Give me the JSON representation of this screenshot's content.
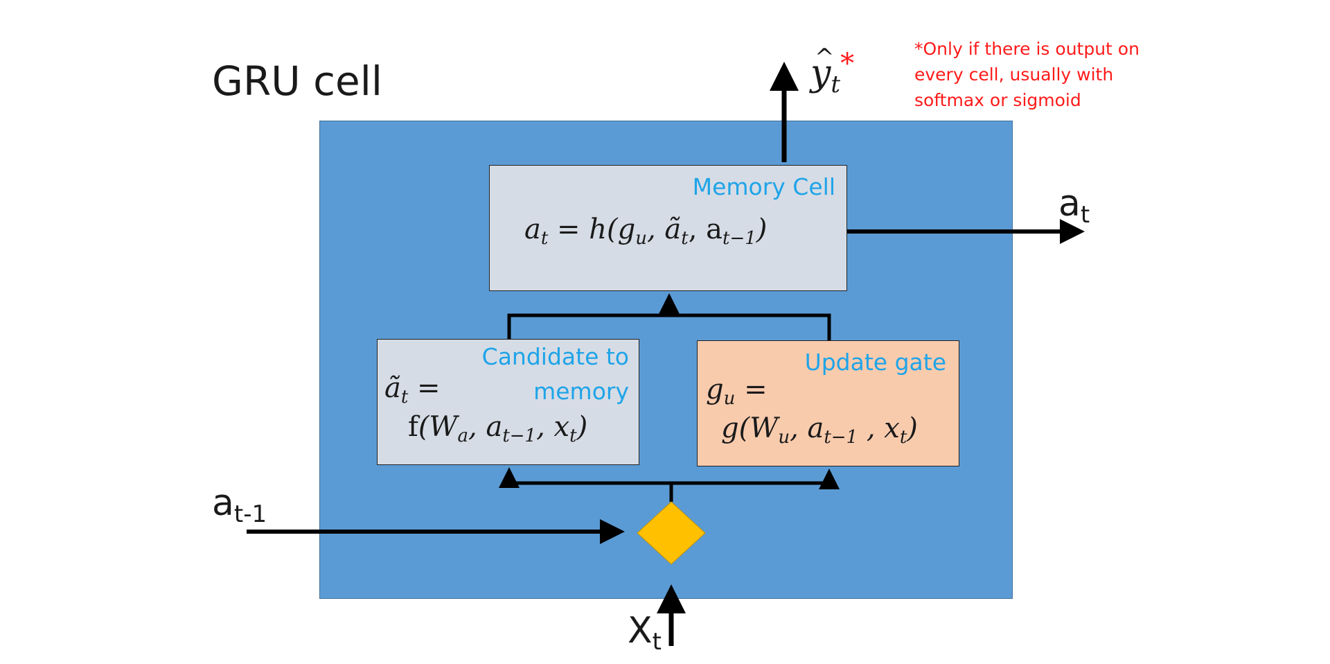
{
  "title": "GRU cell",
  "note": "*Only if there is output on every cell, usually with softmax or sigmoid",
  "memory_cell": {
    "label": "Memory Cell",
    "formula_lhs": "a",
    "formula_lhs_sub": "t",
    "formula_rhs": "= h(g",
    "formula_g_sub": "u",
    "formula_mid": ", ã",
    "formula_at_sub": "t",
    "formula_end": ", a",
    "formula_prev_sub": "t−1",
    "formula_close": ")"
  },
  "candidate": {
    "label_line1": "Candidate to",
    "label_line2": "memory",
    "l1_var": "ã",
    "l1_sub": "t",
    "l1_eq": " =",
    "l2_fn": "f",
    "l2_open": "(W",
    "l2_w_sub": "a",
    "l2_a": ", a",
    "l2_a_sub": "t−1",
    "l2_x": ", x",
    "l2_x_sub": "t",
    "l2_close": ")"
  },
  "update": {
    "label": "Update gate",
    "l1_var": "g",
    "l1_sub": "u",
    "l1_eq": " =",
    "l2_open": "g(W",
    "l2_w_sub": "u",
    "l2_a": ", a",
    "l2_a_sub": "t−1",
    "l2_x": " , x",
    "l2_x_sub": "t",
    "l2_close": ")"
  },
  "inputs": {
    "a_prev": "a",
    "a_prev_sub": "t-1",
    "x": "X",
    "x_sub": "t"
  },
  "outputs": {
    "a": "a",
    "a_sub": "t",
    "y": "y",
    "y_sub": "t",
    "y_star": "*"
  },
  "colors": {
    "cell_background": "#5b9bd5",
    "memory_box": "#d6dce5",
    "candidate_box": "#d6dce5",
    "update_box": "#f8cbad",
    "diamond": "#ffc000",
    "label_blue": "#1fa4e8",
    "note_red": "#ff1a1a"
  }
}
